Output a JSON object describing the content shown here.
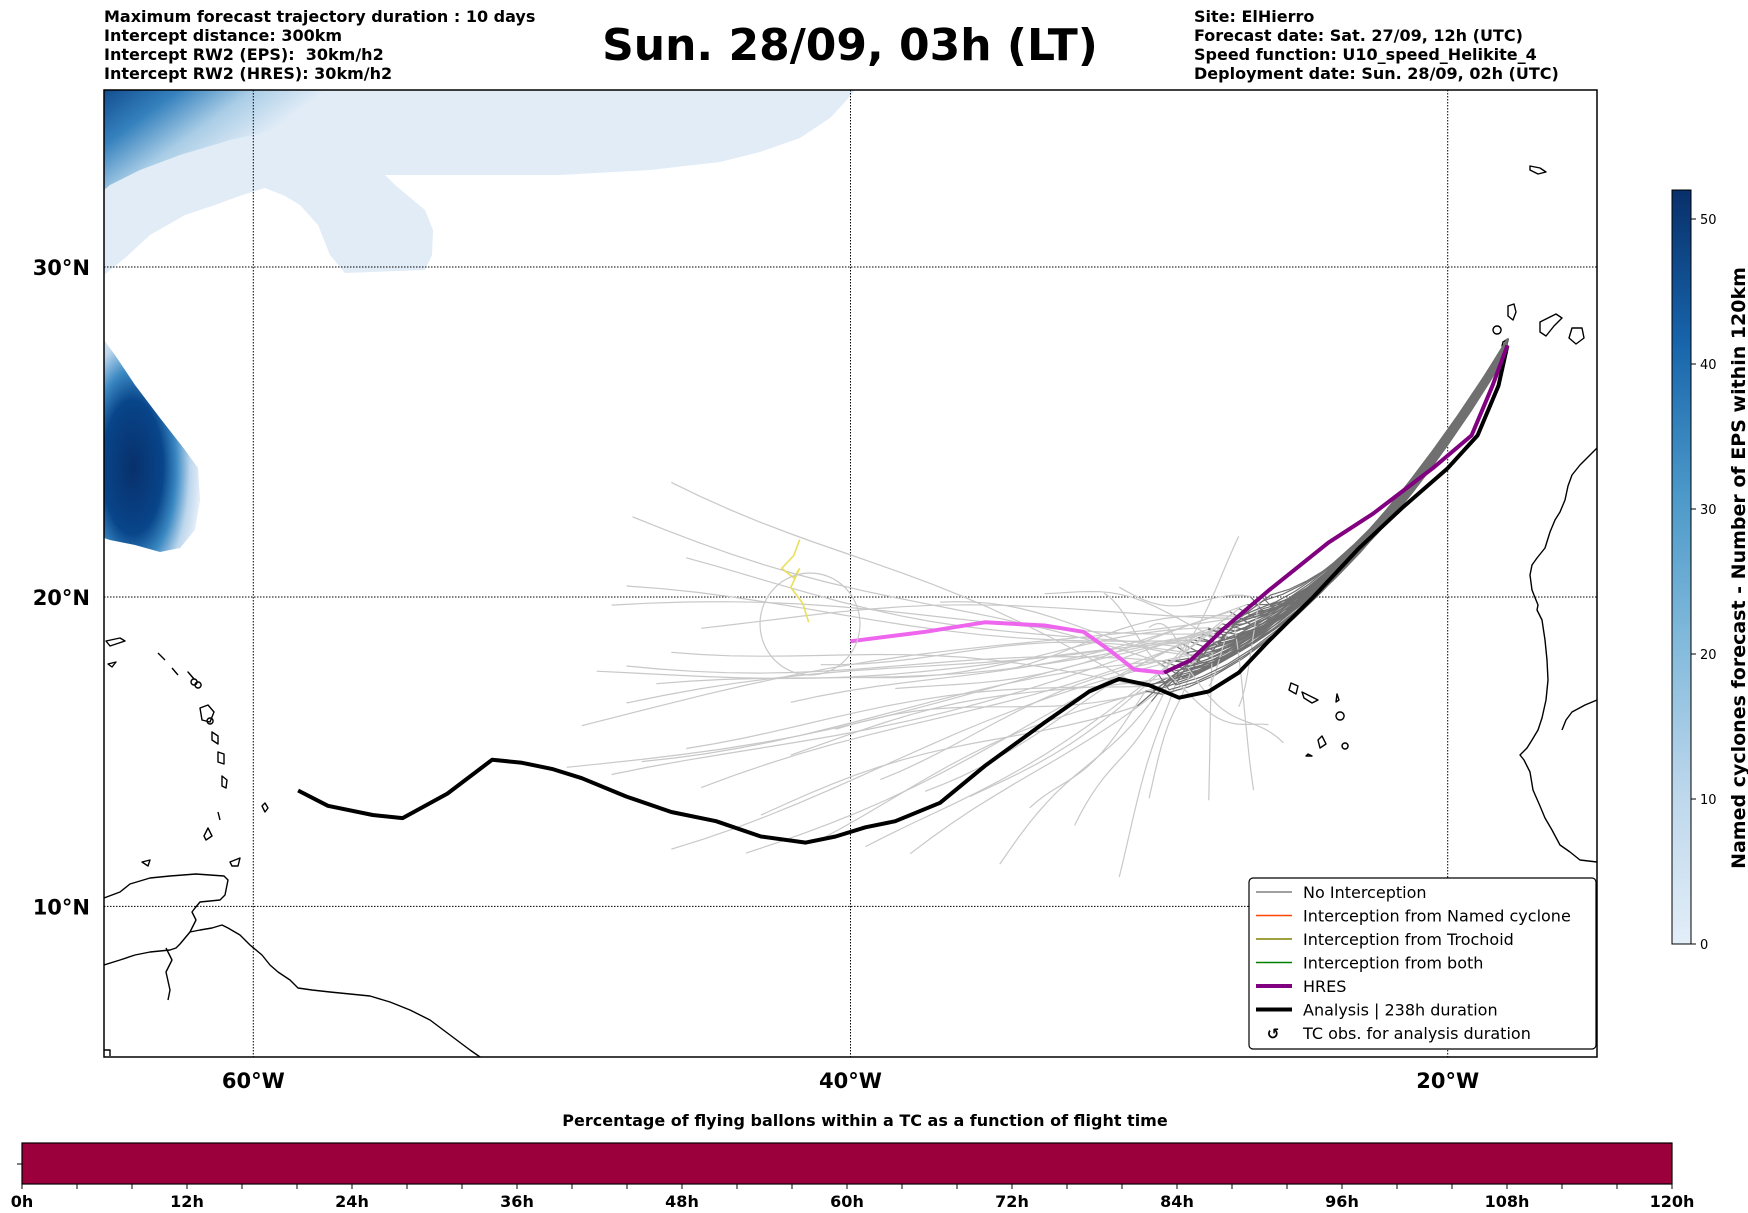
{
  "header": {
    "title": "Sun. 28/09, 03h (LT)",
    "left_info": [
      "Maximum forecast trajectory duration : 10 days",
      "Intercept distance: 300km",
      "Intercept RW2 (EPS):  30km/h2",
      "Intercept RW2 (HRES): 30km/h2"
    ],
    "right_info": [
      "Site: ElHierro",
      "Forecast date: Sat. 27/09, 12h (UTC)",
      "Speed function: U10_speed_Helikite_4",
      "Deployment date: Sun. 28/09, 02h (UTC)"
    ]
  },
  "map": {
    "extent": {
      "lon_min": -65,
      "lon_max": -15,
      "lat_min": 5,
      "lat_max": 35
    },
    "lat_ticks": [
      {
        "value": 30,
        "label": "30°N"
      },
      {
        "value": 20,
        "label": "20°N"
      },
      {
        "value": 10,
        "label": "10°N"
      }
    ],
    "lon_ticks": [
      {
        "value": -60,
        "label": "60°W"
      },
      {
        "value": -40,
        "label": "40°W"
      },
      {
        "value": -20,
        "label": "20°W"
      }
    ],
    "gridlines": "dotted",
    "site": {
      "name": "ElHierro",
      "lon": -18.0,
      "lat": 27.7
    },
    "hres_track": {
      "color_early": "#ee66ee",
      "color_late": "#800080",
      "points": [
        [
          -18.0,
          27.7
        ],
        [
          -18.5,
          26.5
        ],
        [
          -19.2,
          25.0
        ],
        [
          -20.5,
          24.0
        ],
        [
          -22.5,
          22.6
        ],
        [
          -24.0,
          21.7
        ],
        [
          -26.0,
          20.2
        ],
        [
          -27.5,
          19.0
        ],
        [
          -28.6,
          18.0
        ],
        [
          -29.5,
          17.6
        ],
        [
          -30.5,
          17.7
        ],
        [
          -31.3,
          18.3
        ],
        [
          -32.2,
          18.9
        ],
        [
          -33.5,
          19.1
        ],
        [
          -35.5,
          19.2
        ],
        [
          -37.5,
          18.9
        ],
        [
          -40,
          18.6
        ]
      ],
      "split_index": 9
    },
    "analysis_track": {
      "color": "#000000",
      "duration_label": "238h",
      "points": [
        [
          -18.0,
          27.7
        ],
        [
          -18.3,
          26.5
        ],
        [
          -19.0,
          25.0
        ],
        [
          -20.0,
          24.0
        ],
        [
          -21.5,
          22.8
        ],
        [
          -23.0,
          21.5
        ],
        [
          -24.5,
          20.0
        ],
        [
          -26.0,
          18.6
        ],
        [
          -27.0,
          17.6
        ],
        [
          -28.0,
          17.0
        ],
        [
          -29.0,
          16.8
        ],
        [
          -30.0,
          17.2
        ],
        [
          -31.0,
          17.4
        ],
        [
          -32.0,
          17.0
        ],
        [
          -33.5,
          16.0
        ],
        [
          -35.5,
          14.6
        ],
        [
          -37.0,
          13.4
        ],
        [
          -38.5,
          12.8
        ],
        [
          -39.5,
          12.6
        ],
        [
          -40.5,
          12.3
        ],
        [
          -41.5,
          12.1
        ],
        [
          -43.0,
          12.3
        ],
        [
          -44.5,
          12.8
        ],
        [
          -46.0,
          13.1
        ],
        [
          -47.5,
          13.6
        ],
        [
          -49.0,
          14.2
        ],
        [
          -50.0,
          14.5
        ],
        [
          -51.0,
          14.7
        ],
        [
          -52.0,
          14.8
        ],
        [
          -53.5,
          13.7
        ],
        [
          -55.0,
          12.9
        ],
        [
          -56.0,
          13.0
        ],
        [
          -57.5,
          13.3
        ],
        [
          -58.5,
          13.8
        ],
        [
          -47.2,
          14.0
        ]
      ],
      "note": "points approximate"
    },
    "tc_obs_track": {
      "color": "#e8e05a",
      "points": [
        [
          -41.7,
          21.8
        ],
        [
          -41.9,
          21.3
        ],
        [
          -42.3,
          20.9
        ],
        [
          -41.9,
          20.6
        ],
        [
          -41.7,
          20.9
        ],
        [
          -42.0,
          20.3
        ],
        [
          -41.6,
          19.8
        ],
        [
          -41.4,
          19.2
        ]
      ]
    },
    "ensemble": {
      "count": 51,
      "near_color": "#707070",
      "far_color": "#c8c8c8",
      "end_points": [
        [
          -46,
          23.9
        ],
        [
          -47.3,
          22.6
        ],
        [
          -45.5,
          21.0
        ],
        [
          -47.5,
          20.0
        ],
        [
          -48,
          19.6
        ],
        [
          -45,
          19.2
        ],
        [
          -46,
          18.6
        ],
        [
          -47.5,
          18.0
        ],
        [
          -48.5,
          17.5
        ],
        [
          -46.5,
          16.9
        ],
        [
          -47.5,
          16.4
        ],
        [
          -49,
          16.0
        ],
        [
          -45.5,
          15.5
        ],
        [
          -47,
          15.0
        ],
        [
          -49.5,
          14.5
        ],
        [
          -48,
          14.0
        ],
        [
          -45,
          13.6
        ],
        [
          -43,
          13.0
        ],
        [
          -41,
          12.5
        ],
        [
          -46,
          12.2
        ],
        [
          -43.5,
          11.8
        ],
        [
          -39.5,
          11.7
        ],
        [
          -38,
          11.4
        ],
        [
          -35,
          11.3
        ],
        [
          -31,
          11.2
        ],
        [
          -41,
          18.2
        ],
        [
          -40,
          17.6
        ],
        [
          -38.5,
          16.9
        ],
        [
          -42,
          16.3
        ],
        [
          -40.5,
          15.6
        ],
        [
          -42,
          15.1
        ],
        [
          -39,
          14.5
        ],
        [
          -37.5,
          14.0
        ],
        [
          -36,
          13.5
        ],
        [
          -34,
          12.9
        ],
        [
          -32.5,
          12.4
        ],
        [
          -30,
          13.6
        ],
        [
          -28,
          13.8
        ],
        [
          -26.5,
          14.1
        ],
        [
          -31,
          20.3
        ],
        [
          -27,
          21.6
        ],
        [
          -31.5,
          19.8
        ],
        [
          -30,
          19.0
        ],
        [
          -29,
          18.3
        ],
        [
          -28,
          17.5
        ],
        [
          -27,
          16.6
        ],
        [
          -26,
          15.7
        ],
        [
          -25.5,
          15.0
        ],
        [
          -37,
          19.7
        ],
        [
          -33.5,
          20.3
        ],
        [
          -35,
          18.0
        ]
      ]
    },
    "ocean_color": "#ffffff",
    "coast_color": "#000000"
  },
  "colorbar": {
    "label": "Named cyclones forecast - Number of EPS within 120km",
    "min": 0,
    "max": 52,
    "ticks": [
      0,
      10,
      20,
      30,
      40,
      50
    ],
    "color_low": "#e3eef8",
    "color_high": "#08306b"
  },
  "legend": {
    "items": [
      {
        "label": "No Interception",
        "color": "#808080",
        "style": "thin-line"
      },
      {
        "label": "Interception from Named cyclone",
        "color": "#ff4500",
        "style": "thin-line"
      },
      {
        "label": "Interception from Trochoid",
        "color": "#808000",
        "style": "thin-line"
      },
      {
        "label": "Interception from both",
        "color": "#008000",
        "style": "thin-line"
      },
      {
        "label": "HRES",
        "color": "#800080",
        "style": "thick-line"
      },
      {
        "label": "Analysis | 238h duration",
        "color": "#000000",
        "style": "thick-line"
      },
      {
        "label": "TC obs. for analysis duration",
        "color": "#000000",
        "style": "marker",
        "marker": "↺"
      }
    ]
  },
  "timeline": {
    "title": "Percentage of flying ballons within a TC as a function of flight time",
    "bar_color": "#9b003d",
    "range_hours": [
      0,
      120
    ],
    "fill_fraction": 1.0,
    "tick_labels": [
      "0h",
      "12h",
      "24h",
      "36h",
      "48h",
      "60h",
      "72h",
      "84h",
      "96h",
      "108h",
      "120h"
    ]
  },
  "chart_data": {
    "type": "map",
    "title": "Sun. 28/09, 03h (LT)",
    "xlabel": "",
    "ylabel": "",
    "x_ticks": [
      "60°W",
      "40°W",
      "20°W"
    ],
    "y_ticks": [
      "30°N",
      "20°N",
      "10°N"
    ],
    "xlim": [
      -65,
      -15
    ],
    "ylim": [
      5,
      35
    ],
    "grid": true,
    "legend_position": "bottom-right",
    "series": [
      {
        "name": "HRES",
        "type": "line"
      },
      {
        "name": "Analysis | 238h duration",
        "type": "line"
      },
      {
        "name": "No Interception",
        "type": "line",
        "count": 51
      },
      {
        "name": "TC obs. for analysis duration",
        "type": "line"
      }
    ],
    "heatmap": {
      "name": "Named cyclones forecast - Number of EPS within 120km",
      "range": [
        0,
        52
      ],
      "regions": [
        {
          "desc": "northwest band",
          "lon": [
            -65,
            -40
          ],
          "lat": [
            29.8,
            35
          ],
          "peak": 50
        },
        {
          "desc": "west blob",
          "lon": [
            -65,
            -61.8
          ],
          "lat": [
            21,
            27
          ],
          "peak": 52
        }
      ]
    },
    "timeline_bar": {
      "xlim_hours": [
        0,
        120
      ],
      "value_percent": 100
    }
  }
}
